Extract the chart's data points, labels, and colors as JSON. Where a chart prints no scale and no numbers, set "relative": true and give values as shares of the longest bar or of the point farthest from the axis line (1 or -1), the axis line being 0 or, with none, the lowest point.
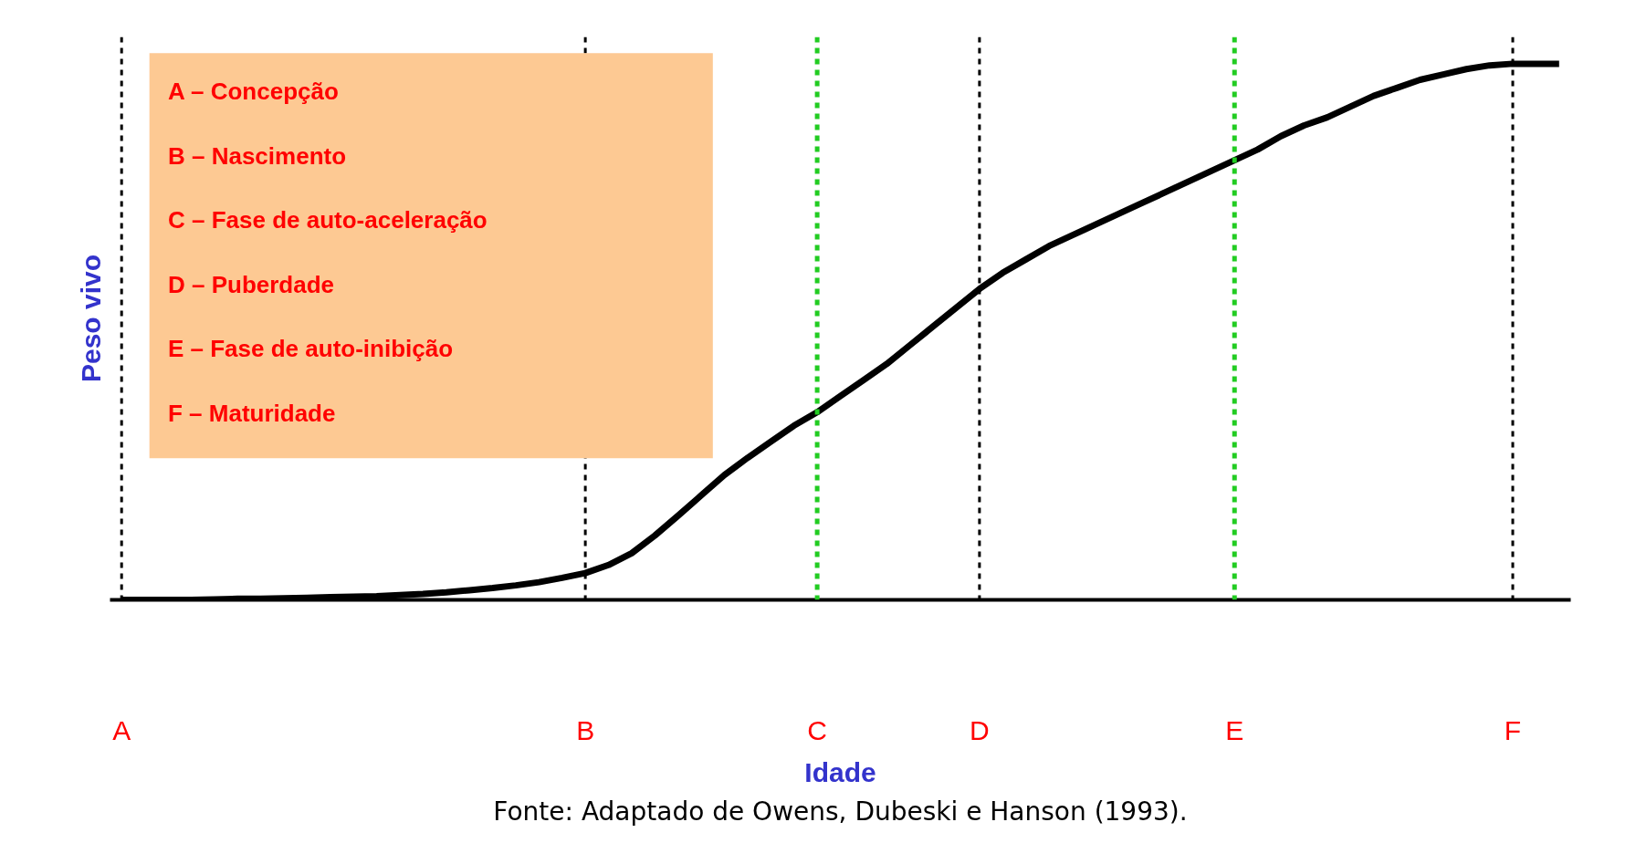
{
  "chart_data": {
    "type": "line",
    "relative": true,
    "xlabel": "Idade",
    "ylabel": "Peso vivo",
    "categories": [
      "A",
      null,
      null,
      null,
      null,
      null,
      null,
      null,
      null,
      null,
      null,
      null,
      null,
      null,
      null,
      null,
      null,
      null,
      null,
      null,
      "B",
      null,
      null,
      null,
      null,
      null,
      null,
      null,
      null,
      null,
      "C",
      null,
      null,
      null,
      null,
      null,
      null,
      "D",
      null,
      null,
      null,
      null,
      null,
      null,
      null,
      null,
      null,
      null,
      "E",
      null,
      null,
      null,
      null,
      null,
      null,
      null,
      null,
      null,
      null,
      null,
      "F",
      null,
      null
    ],
    "series": [
      {
        "color": "#000000",
        "values": [
          0,
          0,
          0,
          0,
          0.001,
          0.002,
          0.002,
          0.003,
          0.004,
          0.005,
          0.006,
          0.007,
          0.009,
          0.011,
          0.014,
          0.018,
          0.022,
          0.027,
          0.033,
          0.041,
          0.05,
          0.065,
          0.087,
          0.12,
          0.157,
          0.195,
          0.233,
          0.265,
          0.295,
          0.325,
          0.35,
          0.38,
          0.41,
          0.44,
          0.475,
          0.51,
          0.545,
          0.58,
          0.61,
          0.635,
          0.66,
          0.68,
          0.7,
          0.72,
          0.74,
          0.76,
          0.78,
          0.8,
          0.82,
          0.84,
          0.865,
          0.885,
          0.9,
          0.92,
          0.94,
          0.955,
          0.97,
          0.98,
          0.99,
          0.997,
          1,
          1,
          1
        ]
      }
    ],
    "ref_lines": [
      {
        "axis": "x",
        "value": "A",
        "color": "#000000",
        "line_style": "dashed"
      },
      {
        "axis": "x",
        "value": "B",
        "color": "#000000",
        "line_style": "dashed"
      },
      {
        "axis": "x",
        "value": "C",
        "color": "#22cc22",
        "line_style": "dashed"
      },
      {
        "axis": "x",
        "value": "D",
        "color": "#000000",
        "line_style": "dashed"
      },
      {
        "axis": "x",
        "value": "E",
        "color": "#22cc22",
        "line_style": "dashed"
      },
      {
        "axis": "x",
        "value": "F",
        "color": "#000000",
        "line_style": "dashed"
      }
    ],
    "annotations": [
      "A – Concepção",
      "B – Nascimento",
      "C – Fase de auto-aceleração",
      "D – Puberdade",
      "E – Fase de auto-inibição",
      "F – Maturidade",
      "Fonte: Adaptado de Owens, Dubeski e Hanson (1993)."
    ],
    "grid": false,
    "marker": "none",
    "line_style": "solid"
  }
}
